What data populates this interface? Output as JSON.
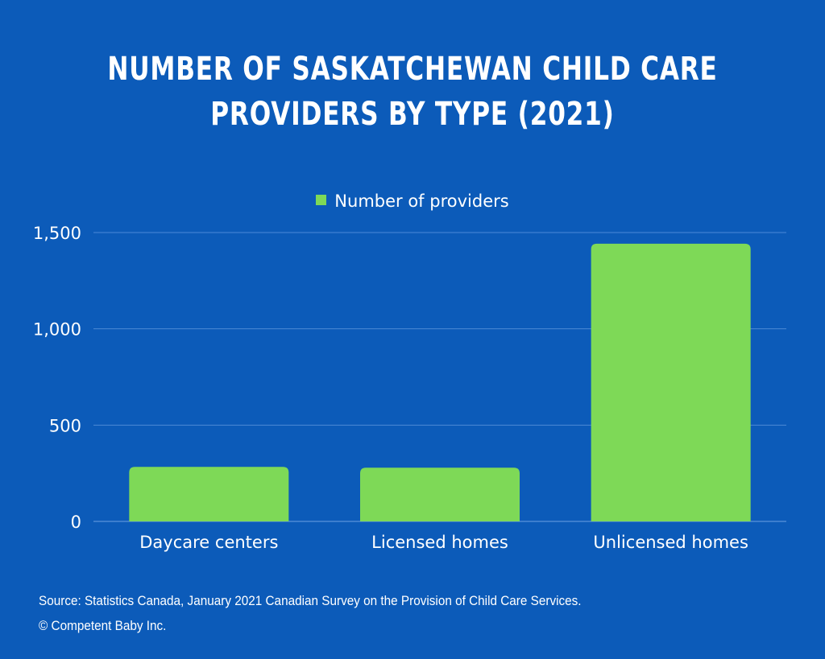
{
  "title_lines": [
    "NUMBER OF SASKATCHEWAN CHILD CARE",
    "PROVIDERS BY TYPE (2021)"
  ],
  "source": "Source: Statistics Canada, January 2021 Canadian Survey on the Provision of Child Care Services.",
  "copyright": "© Competent Baby Inc.",
  "colors": {
    "background": "#0c5bb9",
    "bar": "#7ed957",
    "text": "#ffffff",
    "grid": "#4d8ad6"
  },
  "chart_data": {
    "type": "bar",
    "categories": [
      "Daycare centers",
      "Licensed homes",
      "Unlicensed homes"
    ],
    "series": [
      {
        "name": "Number of providers",
        "values": [
          283,
          279,
          1442
        ]
      }
    ],
    "ylim": [
      0,
      1500
    ],
    "yticks": [
      0,
      500,
      1000,
      1500
    ],
    "ytick_labels": [
      "0",
      "500",
      "1,000",
      "1,500"
    ],
    "grid": true,
    "legend": "top-center"
  }
}
